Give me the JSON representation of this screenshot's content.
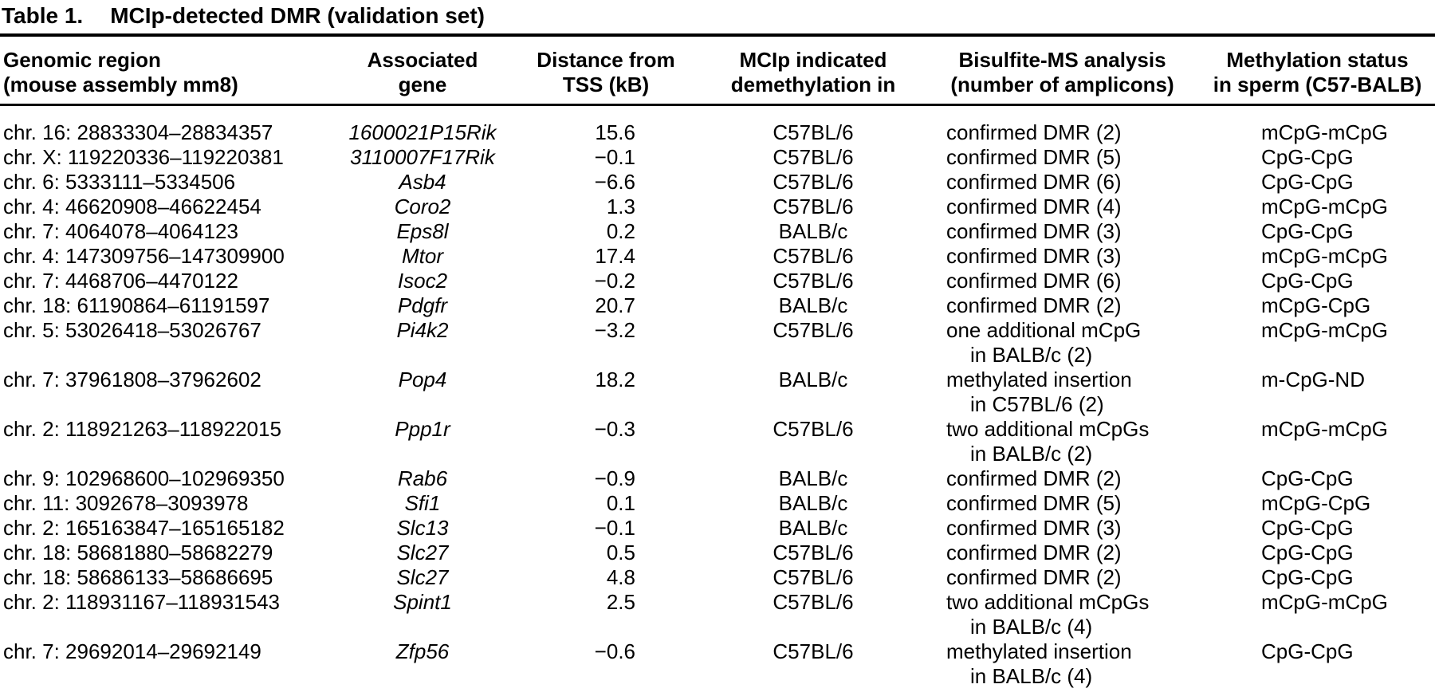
{
  "title": {
    "label": "Table 1.",
    "caption": "MCIp-detected DMR (validation set)"
  },
  "columns": [
    {
      "line1": "Genomic region",
      "line2": "(mouse assembly mm8)"
    },
    {
      "line1": "Associated",
      "line2": "gene"
    },
    {
      "line1": "Distance from",
      "line2": "TSS (kB)"
    },
    {
      "line1": "MCIp indicated",
      "line2": "demethylation in"
    },
    {
      "line1": "Bisulfite-MS analysis",
      "line2": "(number of amplicons)"
    },
    {
      "line1": "Methylation status",
      "line2": "in sperm (C57-BALB)"
    }
  ],
  "rows": [
    {
      "region": "chr. 16: 28833304–28834357",
      "gene": "1600021P15Rik",
      "distance": "15.6",
      "demethylation": "C57BL/6",
      "bisulfite": [
        "confirmed DMR (2)"
      ],
      "status": "mCpG-mCpG"
    },
    {
      "region": "chr. X: 119220336–119220381",
      "gene": "3110007F17Rik",
      "distance": "−0.1",
      "demethylation": "C57BL/6",
      "bisulfite": [
        "confirmed DMR (5)"
      ],
      "status": "CpG-CpG"
    },
    {
      "region": "chr. 6: 5333111–5334506",
      "gene": "Asb4",
      "distance": "−6.6",
      "demethylation": "C57BL/6",
      "bisulfite": [
        "confirmed DMR (6)"
      ],
      "status": "CpG-CpG"
    },
    {
      "region": "chr. 4: 46620908–46622454",
      "gene": "Coro2",
      "distance": "1.3",
      "demethylation": "C57BL/6",
      "bisulfite": [
        "confirmed DMR (4)"
      ],
      "status": "mCpG-mCpG"
    },
    {
      "region": "chr. 7: 4064078–4064123",
      "gene": "Eps8l",
      "distance": "0.2",
      "demethylation": "BALB/c",
      "bisulfite": [
        "confirmed DMR (3)"
      ],
      "status": "CpG-CpG"
    },
    {
      "region": "chr. 4: 147309756–147309900",
      "gene": "Mtor",
      "distance": "17.4",
      "demethylation": "C57BL/6",
      "bisulfite": [
        "confirmed DMR (3)"
      ],
      "status": "mCpG-mCpG"
    },
    {
      "region": "chr. 7: 4468706–4470122",
      "gene": "Isoc2",
      "distance": "−0.2",
      "demethylation": "C57BL/6",
      "bisulfite": [
        "confirmed DMR (6)"
      ],
      "status": "CpG-CpG"
    },
    {
      "region": "chr. 18: 61190864–61191597",
      "gene": "Pdgfr",
      "distance": "20.7",
      "demethylation": "BALB/c",
      "bisulfite": [
        "confirmed DMR (2)"
      ],
      "status": "mCpG-CpG"
    },
    {
      "region": "chr. 5: 53026418–53026767",
      "gene": "Pi4k2",
      "distance": "−3.2",
      "demethylation": "C57BL/6",
      "bisulfite": [
        "one additional mCpG",
        "in BALB/c (2)"
      ],
      "status": "mCpG-mCpG"
    },
    {
      "region": "chr. 7: 37961808–37962602",
      "gene": "Pop4",
      "distance": "18.2",
      "demethylation": "BALB/c",
      "bisulfite": [
        "methylated insertion",
        "in C57BL/6 (2)"
      ],
      "status": "m-CpG-ND"
    },
    {
      "region": "chr. 2: 118921263–118922015",
      "gene": "Ppp1r",
      "distance": "−0.3",
      "demethylation": "C57BL/6",
      "bisulfite": [
        "two additional mCpGs",
        "in BALB/c (2)"
      ],
      "status": "mCpG-mCpG"
    },
    {
      "region": "chr. 9: 102968600–102969350",
      "gene": "Rab6",
      "distance": "−0.9",
      "demethylation": "BALB/c",
      "bisulfite": [
        "confirmed DMR (2)"
      ],
      "status": "CpG-CpG"
    },
    {
      "region": "chr. 11: 3092678–3093978",
      "gene": "Sfi1",
      "distance": "0.1",
      "demethylation": "BALB/c",
      "bisulfite": [
        "confirmed DMR (5)"
      ],
      "status": "mCpG-CpG"
    },
    {
      "region": "chr. 2: 165163847–165165182",
      "gene": "Slc13",
      "distance": "−0.1",
      "demethylation": "BALB/c",
      "bisulfite": [
        "confirmed DMR (3)"
      ],
      "status": "CpG-CpG"
    },
    {
      "region": "chr. 18: 58681880–58682279",
      "gene": "Slc27",
      "distance": "0.5",
      "demethylation": "C57BL/6",
      "bisulfite": [
        "confirmed DMR (2)"
      ],
      "status": "CpG-CpG"
    },
    {
      "region": "chr. 18: 58686133–58686695",
      "gene": "Slc27",
      "distance": "4.8",
      "demethylation": "C57BL/6",
      "bisulfite": [
        "confirmed DMR (2)"
      ],
      "status": "CpG-CpG"
    },
    {
      "region": "chr. 2: 118931167–118931543",
      "gene": "Spint1",
      "distance": "2.5",
      "demethylation": "C57BL/6",
      "bisulfite": [
        "two additional mCpGs",
        "in BALB/c (4)"
      ],
      "status": "mCpG-mCpG"
    },
    {
      "region": "chr. 7: 29692014–29692149",
      "gene": "Zfp56",
      "distance": "−0.6",
      "demethylation": "C57BL/6",
      "bisulfite": [
        "methylated insertion",
        "in BALB/c (4)"
      ],
      "status": "CpG-CpG"
    }
  ]
}
